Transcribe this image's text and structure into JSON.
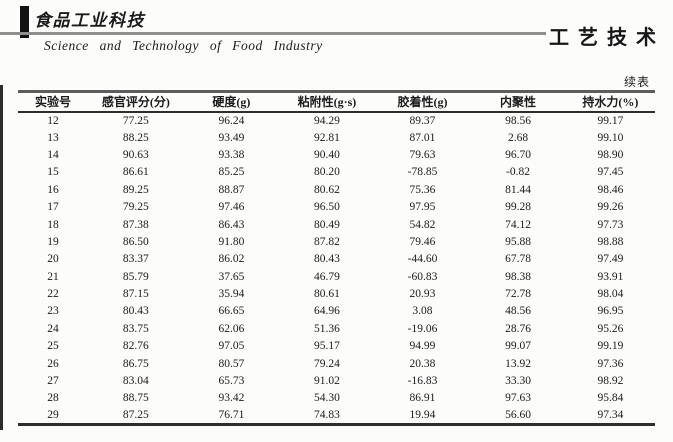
{
  "page": {
    "journal_logo_cn": "食品工业科技",
    "journal_name_en": "Science and Technology of Food Industry",
    "section_label": "工艺技术",
    "continued_label": "续表"
  },
  "table": {
    "columns": [
      "实验号",
      "感官评分(分)",
      "硬度(g)",
      "粘附性(g·s)",
      "胶着性(g)",
      "内聚性",
      "持水力(%)"
    ],
    "rows": [
      [
        "12",
        "77.25",
        "96.24",
        "94.29",
        "89.37",
        "98.56",
        "99.17"
      ],
      [
        "13",
        "88.25",
        "93.49",
        "92.81",
        "87.01",
        "2.68",
        "99.10"
      ],
      [
        "14",
        "90.63",
        "93.38",
        "90.40",
        "79.63",
        "96.70",
        "98.90"
      ],
      [
        "15",
        "86.61",
        "85.25",
        "80.20",
        "-78.85",
        "-0.82",
        "97.45"
      ],
      [
        "16",
        "89.25",
        "88.87",
        "80.62",
        "75.36",
        "81.44",
        "98.46"
      ],
      [
        "17",
        "79.25",
        "97.46",
        "96.50",
        "97.95",
        "99.28",
        "99.26"
      ],
      [
        "18",
        "87.38",
        "86.43",
        "80.49",
        "54.82",
        "74.12",
        "97.73"
      ],
      [
        "19",
        "86.50",
        "91.80",
        "87.82",
        "79.46",
        "95.88",
        "98.88"
      ],
      [
        "20",
        "83.37",
        "86.02",
        "80.43",
        "-44.60",
        "67.78",
        "97.49"
      ],
      [
        "21",
        "85.79",
        "37.65",
        "46.79",
        "-60.83",
        "98.38",
        "93.91"
      ],
      [
        "22",
        "87.15",
        "35.94",
        "80.61",
        "20.93",
        "72.78",
        "98.04"
      ],
      [
        "23",
        "80.43",
        "66.65",
        "64.96",
        "3.08",
        "48.56",
        "96.95"
      ],
      [
        "24",
        "83.75",
        "62.06",
        "51.36",
        "-19.06",
        "28.76",
        "95.26"
      ],
      [
        "25",
        "82.76",
        "97.05",
        "95.17",
        "94.99",
        "99.07",
        "99.19"
      ],
      [
        "26",
        "86.75",
        "80.57",
        "79.24",
        "20.38",
        "13.92",
        "97.36"
      ],
      [
        "27",
        "83.04",
        "65.73",
        "91.02",
        "-16.83",
        "33.30",
        "98.92"
      ],
      [
        "28",
        "88.75",
        "93.42",
        "54.30",
        "86.91",
        "97.63",
        "95.84"
      ],
      [
        "29",
        "87.25",
        "76.71",
        "74.83",
        "19.94",
        "56.60",
        "97.34"
      ]
    ]
  }
}
